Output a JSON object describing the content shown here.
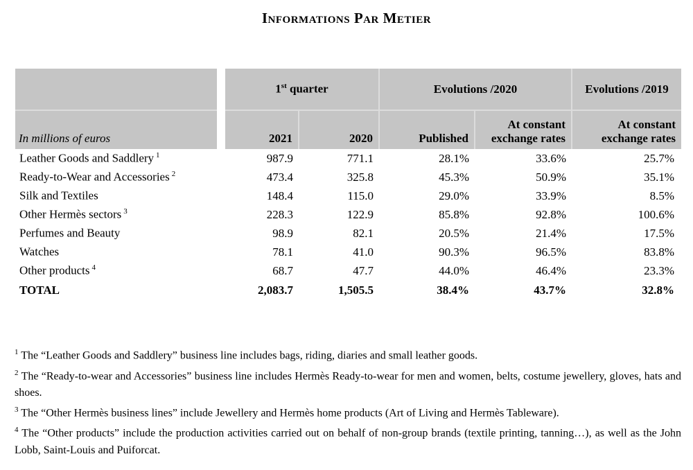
{
  "title": "Informations Par Metier",
  "table": {
    "corner_label": "In millions of euros",
    "groups": {
      "quarter_num": "1",
      "quarter_sup": "st",
      "quarter_rest": " quarter",
      "evolutions_2020": "Evolutions /2020",
      "evolutions_2019": "Evolutions /2019"
    },
    "columns": {
      "y2021": "2021",
      "y2020": "2020",
      "published": "Published",
      "constant_2020": "At constant exchange rates",
      "constant_2019": "At constant exchange rates"
    },
    "rows": [
      {
        "label": "Leather Goods and Saddlery",
        "sup": "1",
        "v2021": "987.9",
        "v2020": "771.1",
        "published": "28.1%",
        "constant_2020": "33.6%",
        "constant_2019": "25.7%"
      },
      {
        "label": "Ready-to-Wear and Accessories",
        "sup": "2",
        "v2021": "473.4",
        "v2020": "325.8",
        "published": "45.3%",
        "constant_2020": "50.9%",
        "constant_2019": "35.1%"
      },
      {
        "label": "Silk and Textiles",
        "sup": "",
        "v2021": "148.4",
        "v2020": "115.0",
        "published": "29.0%",
        "constant_2020": "33.9%",
        "constant_2019": "8.5%"
      },
      {
        "label": "Other Hermès sectors",
        "sup": "3",
        "v2021": "228.3",
        "v2020": "122.9",
        "published": "85.8%",
        "constant_2020": "92.8%",
        "constant_2019": "100.6%"
      },
      {
        "label": "Perfumes and Beauty",
        "sup": "",
        "v2021": "98.9",
        "v2020": "82.1",
        "published": "20.5%",
        "constant_2020": "21.4%",
        "constant_2019": "17.5%"
      },
      {
        "label": "Watches",
        "sup": "",
        "v2021": "78.1",
        "v2020": "41.0",
        "published": "90.3%",
        "constant_2020": "96.5%",
        "constant_2019": "83.8%"
      },
      {
        "label": "Other products",
        "sup": "4",
        "v2021": "68.7",
        "v2020": "47.7",
        "published": "44.0%",
        "constant_2020": "46.4%",
        "constant_2019": "23.3%"
      },
      {
        "label": "TOTAL",
        "sup": "",
        "v2021": "2,083.7",
        "v2020": "1,505.5",
        "published": "38.4%",
        "constant_2020": "43.7%",
        "constant_2019": "32.8%"
      }
    ]
  },
  "footnotes": [
    {
      "sup": "1",
      "text": "The “Leather Goods and Saddlery” business line includes bags, riding, diaries and small leather goods."
    },
    {
      "sup": "2",
      "text": "The “Ready-to-wear and Accessories” business line includes Hermès Ready-to-wear for men and women, belts, costume jewellery, gloves, hats and shoes."
    },
    {
      "sup": "3",
      "text": "The “Other Hermès business lines” include Jewellery and Hermès home products (Art of Living and Hermès Tableware)."
    },
    {
      "sup": "4",
      "text": "The “Other products” include the production activities carried out on behalf of non-group brands (textile printing, tanning…), as well as the John Lobb, Saint-Louis and Puiforcat."
    }
  ],
  "colors": {
    "header_background": "#c5c5c5",
    "divider": "#dcdcdc",
    "text": "#000000",
    "page_background": "#ffffff"
  }
}
